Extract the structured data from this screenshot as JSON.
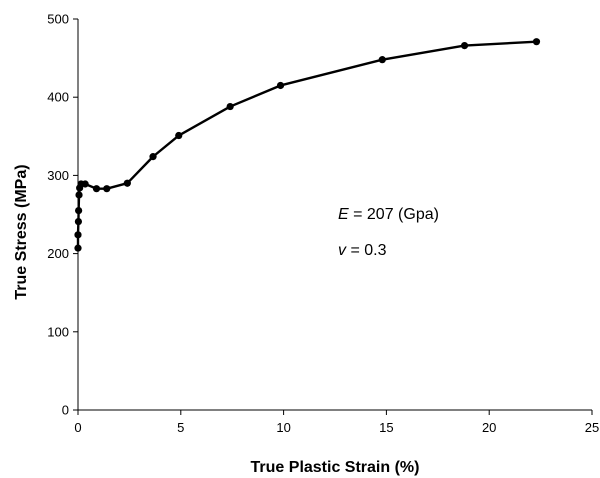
{
  "chart_data": {
    "type": "line",
    "title": "",
    "xlabel": "True Plastic Strain  (%)",
    "ylabel": "True Stress  (MPa)",
    "xlim": [
      0,
      25
    ],
    "ylim": [
      0,
      500
    ],
    "xticks": [
      0,
      5,
      10,
      15,
      20,
      25
    ],
    "yticks": [
      0,
      100,
      200,
      300,
      400,
      500
    ],
    "grid": false,
    "legend": "none",
    "series": [
      {
        "color": "#000000",
        "marker": "circle",
        "x": [
          0,
          0,
          0.02,
          0.03,
          0.05,
          0.08,
          0.15,
          0.35,
          0.9,
          1.4,
          2.4,
          3.65,
          4.9,
          7.4,
          9.85,
          14.8,
          18.8,
          22.3
        ],
        "y": [
          207,
          224,
          241,
          255,
          275,
          284,
          289,
          289,
          283,
          283,
          290,
          324,
          351,
          388,
          415,
          448,
          466,
          471
        ]
      }
    ],
    "annotations": [
      {
        "symbol": "E",
        "text": " = 207 (Gpa)"
      },
      {
        "symbol": "v",
        "text": " = 0.3"
      }
    ]
  }
}
